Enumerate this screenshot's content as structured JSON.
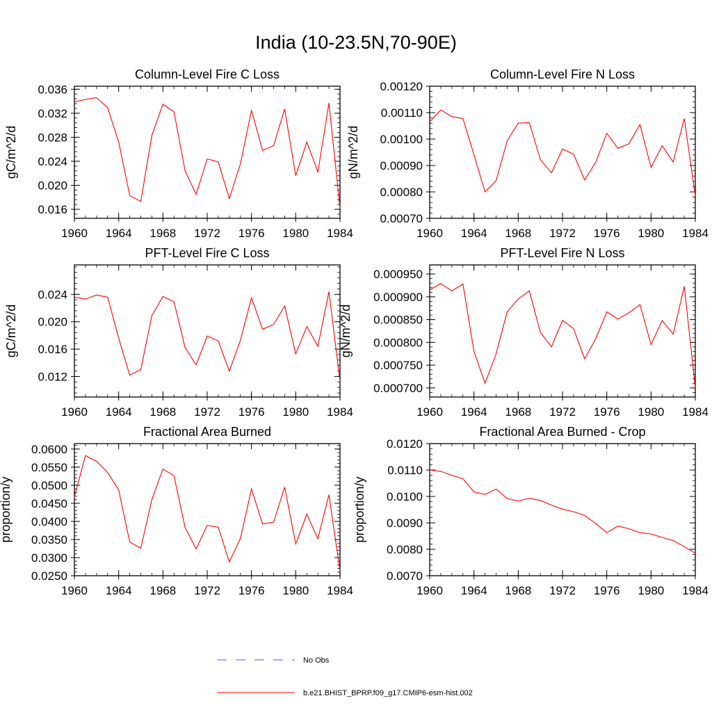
{
  "page_title": "India (10-23.5N,70-90E)",
  "chart_data": [
    {
      "type": "line",
      "title": "Column-Level Fire C Loss",
      "ylabel": "gC/m^2/d",
      "xlim": [
        1960,
        1984
      ],
      "ylim": [
        0.0145,
        0.0365
      ],
      "yticks": [
        "0.016",
        "0.020",
        "0.024",
        "0.028",
        "0.032",
        "0.036"
      ],
      "ytick_values": [
        0.016,
        0.02,
        0.024,
        0.028,
        0.032,
        0.036
      ],
      "xticks": [
        "1960",
        "1964",
        "1968",
        "1972",
        "1976",
        "1980",
        "1984"
      ],
      "x": [
        1960,
        1961,
        1962,
        1963,
        1964,
        1965,
        1966,
        1967,
        1968,
        1969,
        1970,
        1971,
        1972,
        1973,
        1974,
        1975,
        1976,
        1977,
        1978,
        1979,
        1980,
        1981,
        1982,
        1983,
        1984
      ],
      "series": [
        {
          "name": "b.e21.BHIST_BPRP.f09_g17.CMIP6-esm-hist.002",
          "color": "#ff0000",
          "values": [
            0.0339,
            0.0343,
            0.0346,
            0.0329,
            0.0272,
            0.0183,
            0.0173,
            0.0283,
            0.0335,
            0.0322,
            0.0224,
            0.0185,
            0.0244,
            0.0239,
            0.0178,
            0.0236,
            0.0325,
            0.0258,
            0.0266,
            0.0327,
            0.0216,
            0.0272,
            0.0222,
            0.0337,
            0.0162
          ]
        }
      ]
    },
    {
      "type": "line",
      "title": "Column-Level Fire N Loss",
      "ylabel": "gN/m^2/d",
      "xlim": [
        1960,
        1984
      ],
      "ylim": [
        0.0007,
        0.0012
      ],
      "yticks": [
        "0.00070",
        "0.00080",
        "0.00090",
        "0.00100",
        "0.00110",
        "0.00120"
      ],
      "ytick_values": [
        0.0007,
        0.0008,
        0.0009,
        0.001,
        0.0011,
        0.0012
      ],
      "xticks": [
        "1960",
        "1964",
        "1968",
        "1972",
        "1976",
        "1980",
        "1984"
      ],
      "x": [
        1960,
        1961,
        1962,
        1963,
        1964,
        1965,
        1966,
        1967,
        1968,
        1969,
        1970,
        1971,
        1972,
        1973,
        1974,
        1975,
        1976,
        1977,
        1978,
        1979,
        1980,
        1981,
        1982,
        1983,
        1984
      ],
      "series": [
        {
          "name": "b.e21.BHIST_BPRP.f09_g17.CMIP6-esm-hist.002",
          "color": "#ff0000",
          "values": [
            0.001065,
            0.00111,
            0.001085,
            0.001078,
            0.00094,
            0.0008,
            0.000843,
            0.000993,
            0.00106,
            0.001062,
            0.000922,
            0.000872,
            0.000962,
            0.000943,
            0.000845,
            0.000912,
            0.001022,
            0.000965,
            0.000982,
            0.001055,
            0.000893,
            0.000975,
            0.000913,
            0.001078,
            0.000785
          ]
        }
      ]
    },
    {
      "type": "line",
      "title": "PFT-Level Fire C Loss",
      "ylabel": "gC/m^2/d",
      "xlim": [
        1960,
        1984
      ],
      "ylim": [
        0.009,
        0.0283
      ],
      "yticks": [
        "0.012",
        "0.016",
        "0.020",
        "0.024"
      ],
      "ytick_values": [
        0.012,
        0.016,
        0.02,
        0.024
      ],
      "xticks": [
        "1960",
        "1964",
        "1968",
        "1972",
        "1976",
        "1980",
        "1984"
      ],
      "x": [
        1960,
        1961,
        1962,
        1963,
        1964,
        1965,
        1966,
        1967,
        1968,
        1969,
        1970,
        1971,
        1972,
        1973,
        1974,
        1975,
        1976,
        1977,
        1978,
        1979,
        1980,
        1981,
        1982,
        1983,
        1984
      ],
      "series": [
        {
          "name": "b.e21.BHIST_BPRP.f09_g17.CMIP6-esm-hist.002",
          "color": "#ff0000",
          "values": [
            0.0236,
            0.0233,
            0.0239,
            0.0236,
            0.0176,
            0.0122,
            0.013,
            0.0209,
            0.0237,
            0.0229,
            0.0162,
            0.0137,
            0.0179,
            0.0172,
            0.0128,
            0.0173,
            0.0235,
            0.0189,
            0.0196,
            0.0223,
            0.0153,
            0.0193,
            0.0164,
            0.0244,
            0.0113
          ]
        }
      ]
    },
    {
      "type": "line",
      "title": "PFT-Level Fire N Loss",
      "ylabel": "gN/m^2/d",
      "xlim": [
        1960,
        1984
      ],
      "ylim": [
        0.00068,
        0.00097
      ],
      "yticks": [
        "0.000700",
        "0.000750",
        "0.000800",
        "0.000850",
        "0.000900",
        "0.000950"
      ],
      "ytick_values": [
        0.0007,
        0.00075,
        0.0008,
        0.00085,
        0.0009,
        0.00095
      ],
      "xticks": [
        "1960",
        "1964",
        "1968",
        "1972",
        "1976",
        "1980",
        "1984"
      ],
      "x": [
        1960,
        1961,
        1962,
        1963,
        1964,
        1965,
        1966,
        1967,
        1968,
        1969,
        1970,
        1971,
        1972,
        1973,
        1974,
        1975,
        1976,
        1977,
        1978,
        1979,
        1980,
        1981,
        1982,
        1983,
        1984
      ],
      "series": [
        {
          "name": "b.e21.BHIST_BPRP.f09_g17.CMIP6-esm-hist.002",
          "color": "#ff0000",
          "values": [
            0.000915,
            0.000929,
            0.000913,
            0.000928,
            0.00078,
            0.00071,
            0.000775,
            0.000867,
            0.000895,
            0.000913,
            0.000822,
            0.00079,
            0.000848,
            0.00083,
            0.000764,
            0.000808,
            0.000867,
            0.000851,
            0.000865,
            0.000883,
            0.000795,
            0.000848,
            0.000818,
            0.000923,
            0.0007
          ]
        }
      ]
    },
    {
      "type": "line",
      "title": "Fractional Area Burned",
      "ylabel": "proportion/y",
      "xlim": [
        1960,
        1984
      ],
      "ylim": [
        0.025,
        0.0615
      ],
      "yticks": [
        "0.0250",
        "0.0300",
        "0.0350",
        "0.0400",
        "0.0450",
        "0.0500",
        "0.0550",
        "0.0600"
      ],
      "ytick_values": [
        0.025,
        0.03,
        0.035,
        0.04,
        0.045,
        0.05,
        0.055,
        0.06
      ],
      "xticks": [
        "1960",
        "1964",
        "1968",
        "1972",
        "1976",
        "1980",
        "1984"
      ],
      "x": [
        1960,
        1961,
        1962,
        1963,
        1964,
        1965,
        1966,
        1967,
        1968,
        1969,
        1970,
        1971,
        1972,
        1973,
        1974,
        1975,
        1976,
        1977,
        1978,
        1979,
        1980,
        1981,
        1982,
        1983,
        1984
      ],
      "series": [
        {
          "name": "b.e21.BHIST_BPRP.f09_g17.CMIP6-esm-hist.002",
          "color": "#ff0000",
          "values": [
            0.0468,
            0.0582,
            0.0566,
            0.0535,
            0.0487,
            0.0343,
            0.0326,
            0.046,
            0.0545,
            0.0526,
            0.0383,
            0.0324,
            0.0389,
            0.0384,
            0.0288,
            0.0353,
            0.049,
            0.0393,
            0.0398,
            0.0495,
            0.0338,
            0.042,
            0.0352,
            0.0474,
            0.0263
          ]
        }
      ]
    },
    {
      "type": "line",
      "title": "Fractional Area Burned - Crop",
      "ylabel": "proportion/y",
      "xlim": [
        1960,
        1984
      ],
      "ylim": [
        0.007,
        0.012
      ],
      "yticks": [
        "0.0070",
        "0.0080",
        "0.0090",
        "0.0100",
        "0.0110",
        "0.0120"
      ],
      "ytick_values": [
        0.007,
        0.008,
        0.009,
        0.01,
        0.011,
        0.012
      ],
      "xticks": [
        "1960",
        "1964",
        "1968",
        "1972",
        "1976",
        "1980",
        "1984"
      ],
      "x": [
        1960,
        1961,
        1962,
        1963,
        1964,
        1965,
        1966,
        1967,
        1968,
        1969,
        1970,
        1971,
        1972,
        1973,
        1974,
        1975,
        1976,
        1977,
        1978,
        1979,
        1980,
        1981,
        1982,
        1983,
        1984
      ],
      "series": [
        {
          "name": "b.e21.BHIST_BPRP.f09_g17.CMIP6-esm-hist.002",
          "color": "#ff0000",
          "values": [
            0.011,
            0.01095,
            0.0108,
            0.01067,
            0.01017,
            0.01008,
            0.01028,
            0.00992,
            0.00983,
            0.00993,
            0.00985,
            0.00967,
            0.00952,
            0.00942,
            0.00928,
            0.00898,
            0.00863,
            0.00888,
            0.00878,
            0.00863,
            0.00858,
            0.00845,
            0.00833,
            0.0081,
            0.00785
          ]
        }
      ]
    }
  ],
  "legend": [
    {
      "label": "No Obs",
      "style": "dashed",
      "color": "#4a5cc8"
    },
    {
      "label": "b.e21.BHIST_BPRP.f09_g17.CMIP6-esm-hist.002",
      "style": "solid",
      "color": "#ff0000"
    }
  ]
}
